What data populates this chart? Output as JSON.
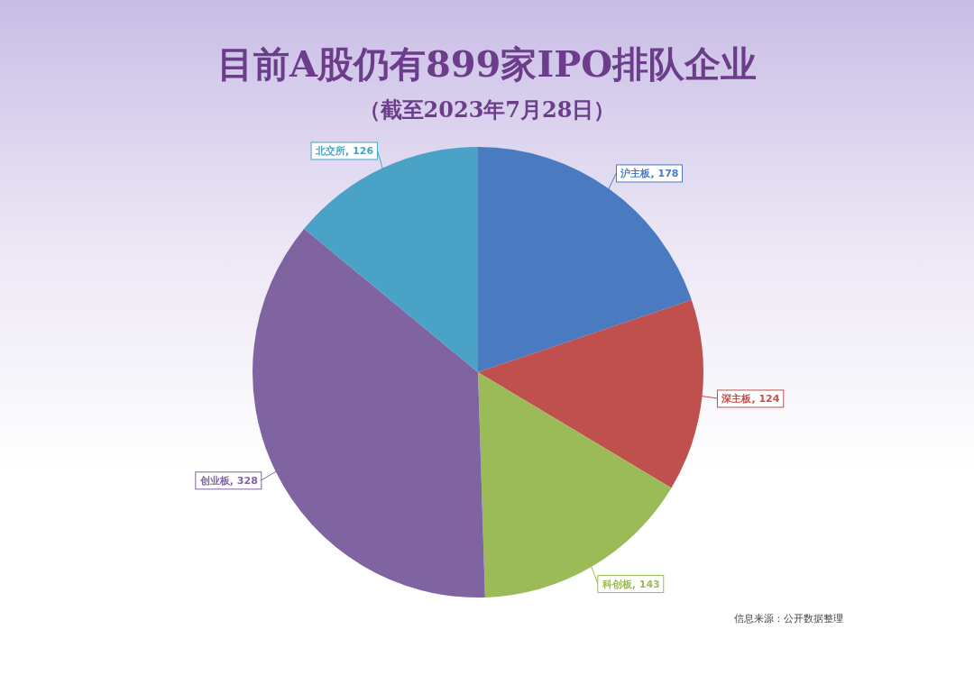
{
  "chart_data": {
    "type": "pie",
    "title": "目前A股仍有899家IPO排队企业",
    "subtitle": "（截至2023年7月28日）",
    "categories": [
      "沪主板",
      "深主板",
      "科创板",
      "创业板",
      "北交所"
    ],
    "values": [
      178,
      124,
      143,
      328,
      126
    ],
    "colors": [
      "#4a7abf",
      "#c0504d",
      "#9bbb59",
      "#8064a2",
      "#4aa3c6"
    ],
    "value_labels": [
      ", 178",
      ", 124",
      ", 143",
      ", 328",
      ", 126"
    ],
    "annotations": [
      "信息来源：公开数据整理"
    ]
  }
}
